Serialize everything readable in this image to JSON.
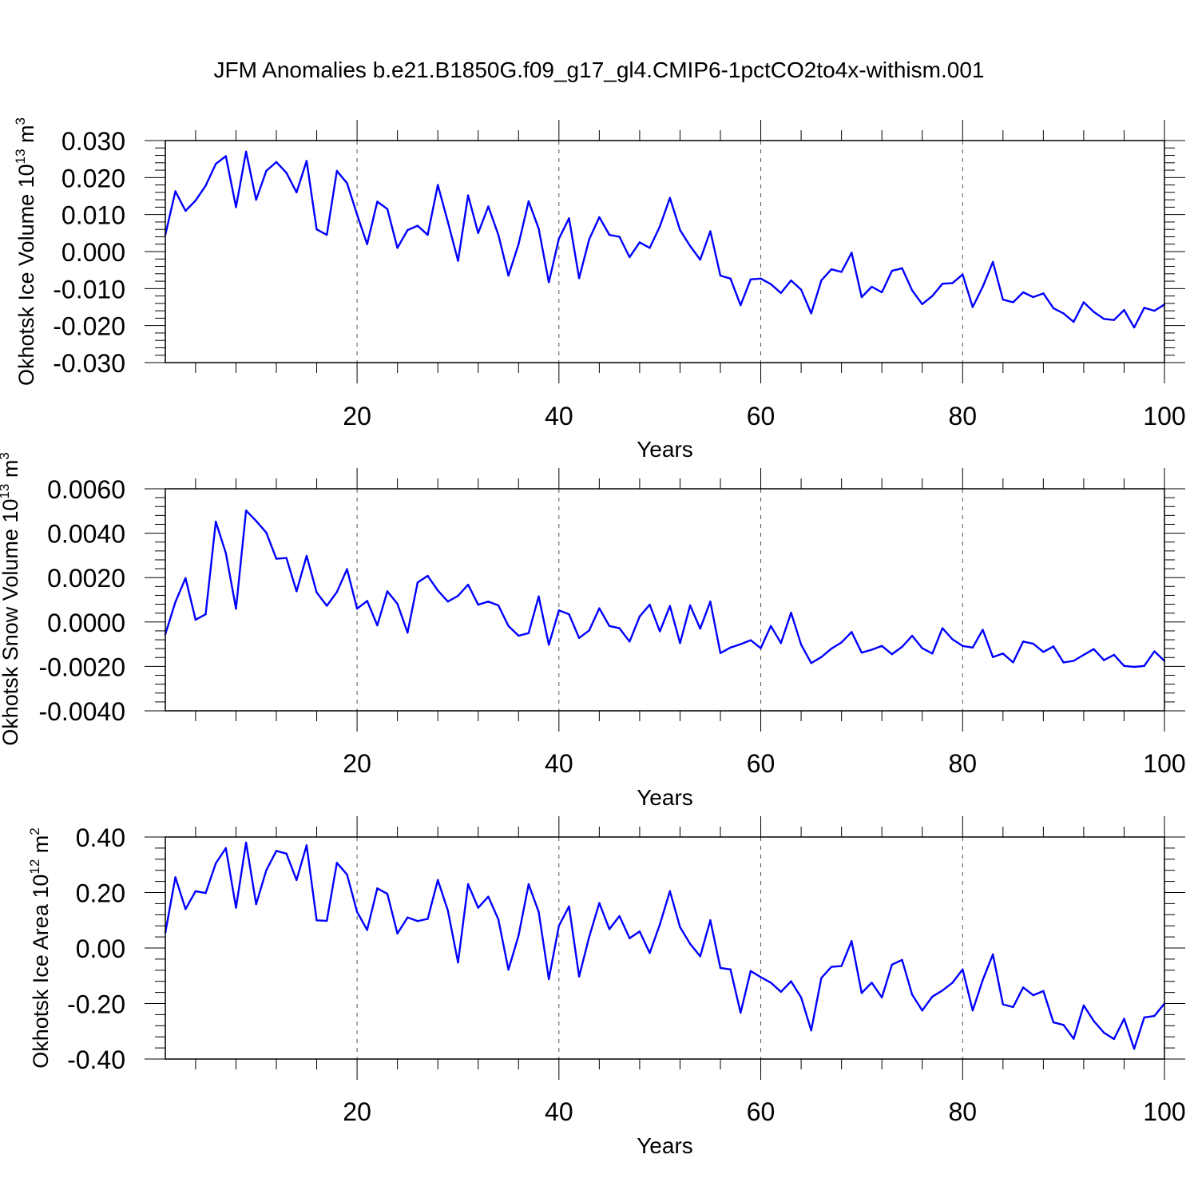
{
  "title": "JFM Anomalies b.e21.B1850G.f09_g17_gl4.CMIP6-1pctCO2to4x-withism.001",
  "colors": {
    "line": "#0000ff",
    "axis": "#000000",
    "grid": "#555555"
  },
  "chart_data": [
    {
      "type": "line",
      "ylabel": "Okhotsk Ice Volume 10",
      "ylabel_exp": "13",
      "ylabel_unit": "m",
      "ylabel_unit_exp": "3",
      "xlabel": "Years",
      "xlim": [
        1,
        100
      ],
      "ylim": [
        -0.03,
        0.03
      ],
      "xticks": [
        20,
        40,
        60,
        80,
        100
      ],
      "xtick_labels": [
        "20",
        "40",
        "60",
        "80",
        "100"
      ],
      "yticks": [
        -0.03,
        -0.02,
        -0.01,
        0.0,
        0.01,
        0.02,
        0.03
      ],
      "ytick_labels": [
        "-0.030",
        "-0.020",
        "-0.010",
        "0.000",
        "0.010",
        "0.020",
        "0.030"
      ],
      "grid_x": [
        20,
        40,
        60,
        80
      ],
      "series": [
        {
          "name": "Okhotsk Ice Volume",
          "values": [
            0.0045,
            0.0163,
            0.011,
            0.0138,
            0.0178,
            0.0237,
            0.0258,
            0.012,
            0.027,
            0.014,
            0.0218,
            0.0242,
            0.0213,
            0.016,
            0.0245,
            0.006,
            0.0045,
            0.0218,
            0.0185,
            0.01,
            0.002,
            0.0135,
            0.0115,
            0.001,
            0.0058,
            0.007,
            0.0045,
            0.018,
            0.008,
            -0.0025,
            0.0152,
            0.005,
            0.0122,
            0.0045,
            -0.0065,
            0.002,
            0.0136,
            0.0062,
            -0.0083,
            0.0035,
            0.009,
            -0.0072,
            0.0033,
            0.0093,
            0.0045,
            0.004,
            -0.0015,
            0.0025,
            0.001,
            0.0068,
            0.0145,
            0.0058,
            0.0015,
            -0.0022,
            0.0055,
            -0.0065,
            -0.0073,
            -0.0145,
            -0.0075,
            -0.0073,
            -0.0088,
            -0.0112,
            -0.0078,
            -0.0103,
            -0.0167,
            -0.0078,
            -0.0048,
            -0.0055,
            -0.0003,
            -0.0123,
            -0.0095,
            -0.011,
            -0.0052,
            -0.0045,
            -0.0105,
            -0.0142,
            -0.012,
            -0.0087,
            -0.0085,
            -0.0062,
            -0.015,
            -0.0095,
            -0.0028,
            -0.013,
            -0.0137,
            -0.011,
            -0.0123,
            -0.0113,
            -0.0153,
            -0.0167,
            -0.019,
            -0.0137,
            -0.0163,
            -0.0182,
            -0.0185,
            -0.0158,
            -0.0205,
            -0.0152,
            -0.016,
            -0.0143
          ]
        }
      ]
    },
    {
      "type": "line",
      "ylabel": "Okhotsk Snow Volume 10",
      "ylabel_exp": "13",
      "ylabel_unit": "m",
      "ylabel_unit_exp": "3",
      "xlabel": "Years",
      "xlim": [
        1,
        100
      ],
      "ylim": [
        -0.004,
        0.006
      ],
      "xticks": [
        20,
        40,
        60,
        80,
        100
      ],
      "xtick_labels": [
        "20",
        "40",
        "60",
        "80",
        "100"
      ],
      "yticks": [
        -0.004,
        -0.002,
        0.0,
        0.002,
        0.004,
        0.006
      ],
      "ytick_labels": [
        "-0.0040",
        "-0.0020",
        "0.0000",
        "0.0020",
        "0.0040",
        "0.0060"
      ],
      "grid_x": [
        20,
        40,
        60,
        80
      ],
      "series": [
        {
          "name": "Okhotsk Snow Volume",
          "values": [
            -0.00055,
            0.0009,
            0.00198,
            0.0001,
            0.00035,
            0.00452,
            0.0031,
            0.0006,
            0.00502,
            0.00455,
            0.00403,
            0.00285,
            0.00288,
            0.00138,
            0.00298,
            0.00133,
            0.00073,
            0.00135,
            0.00238,
            0.0006,
            0.00095,
            -0.00015,
            0.00138,
            0.00082,
            -0.00048,
            0.00178,
            0.00208,
            0.00142,
            0.00092,
            0.00118,
            0.00168,
            0.00078,
            0.00092,
            0.00075,
            -0.00018,
            -0.00062,
            -0.0005,
            0.00115,
            -0.00102,
            0.00052,
            0.00035,
            -0.00072,
            -0.00038,
            0.00062,
            -0.00018,
            -0.00028,
            -0.00088,
            0.00025,
            0.00078,
            -0.00042,
            0.00072,
            -0.00095,
            0.00075,
            -0.0003,
            0.00092,
            -0.0014,
            -0.00115,
            -0.001,
            -0.00082,
            -0.00118,
            -0.00018,
            -0.00095,
            0.00042,
            -0.00102,
            -0.00185,
            -0.00158,
            -0.0012,
            -0.00092,
            -0.00045,
            -0.00138,
            -0.00125,
            -0.00108,
            -0.00145,
            -0.00112,
            -0.00062,
            -0.00118,
            -0.00142,
            -0.00028,
            -0.00078,
            -0.00108,
            -0.00115,
            -0.00035,
            -0.00158,
            -0.00142,
            -0.00182,
            -0.00088,
            -0.00098,
            -0.00135,
            -0.0011,
            -0.00182,
            -0.00175,
            -0.00148,
            -0.00122,
            -0.00172,
            -0.00148,
            -0.00198,
            -0.00202,
            -0.00198,
            -0.00132,
            -0.00175
          ]
        }
      ]
    },
    {
      "type": "line",
      "ylabel": "Okhotsk Ice Area 10",
      "ylabel_exp": "12",
      "ylabel_unit": "m",
      "ylabel_unit_exp": "2",
      "xlabel": "Years",
      "xlim": [
        1,
        100
      ],
      "ylim": [
        -0.4,
        0.4
      ],
      "xticks": [
        20,
        40,
        60,
        80,
        100
      ],
      "xtick_labels": [
        "20",
        "40",
        "60",
        "80",
        "100"
      ],
      "yticks": [
        -0.4,
        -0.2,
        0.0,
        0.2,
        0.4
      ],
      "ytick_labels": [
        "-0.40",
        "-0.20",
        "0.00",
        "0.20",
        "0.40"
      ],
      "grid_x": [
        20,
        40,
        60,
        80
      ],
      "series": [
        {
          "name": "Okhotsk Ice Area",
          "values": [
            0.055,
            0.255,
            0.14,
            0.205,
            0.198,
            0.305,
            0.36,
            0.145,
            0.38,
            0.158,
            0.28,
            0.35,
            0.34,
            0.245,
            0.37,
            0.1,
            0.098,
            0.307,
            0.265,
            0.13,
            0.065,
            0.215,
            0.195,
            0.052,
            0.11,
            0.097,
            0.105,
            0.245,
            0.135,
            -0.052,
            0.23,
            0.145,
            0.185,
            0.103,
            -0.078,
            0.045,
            0.23,
            0.13,
            -0.112,
            0.08,
            0.15,
            -0.103,
            0.04,
            0.162,
            0.068,
            0.115,
            0.035,
            0.06,
            -0.018,
            0.085,
            0.205,
            0.075,
            0.015,
            -0.03,
            0.1,
            -0.072,
            -0.077,
            -0.233,
            -0.083,
            -0.105,
            -0.125,
            -0.158,
            -0.12,
            -0.178,
            -0.297,
            -0.108,
            -0.068,
            -0.065,
            0.025,
            -0.162,
            -0.125,
            -0.178,
            -0.06,
            -0.043,
            -0.168,
            -0.225,
            -0.175,
            -0.153,
            -0.125,
            -0.077,
            -0.225,
            -0.115,
            -0.023,
            -0.203,
            -0.213,
            -0.142,
            -0.17,
            -0.155,
            -0.268,
            -0.277,
            -0.327,
            -0.207,
            -0.263,
            -0.305,
            -0.328,
            -0.255,
            -0.363,
            -0.25,
            -0.245,
            -0.2
          ]
        }
      ]
    }
  ]
}
